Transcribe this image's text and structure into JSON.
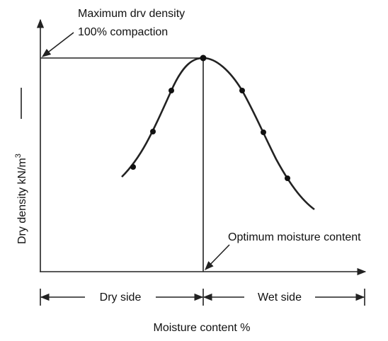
{
  "header": {
    "title": "Maximum drv density",
    "subtitle": "100% compaction"
  },
  "y_axis": {
    "label": "Dry density kN/m",
    "label_sup": "3"
  },
  "annotations": {
    "optimum": "Optimum moisture content"
  },
  "regions": {
    "dry": "Dry side",
    "wet": "Wet side"
  },
  "x_axis": {
    "label": "Moisture content %"
  }
}
